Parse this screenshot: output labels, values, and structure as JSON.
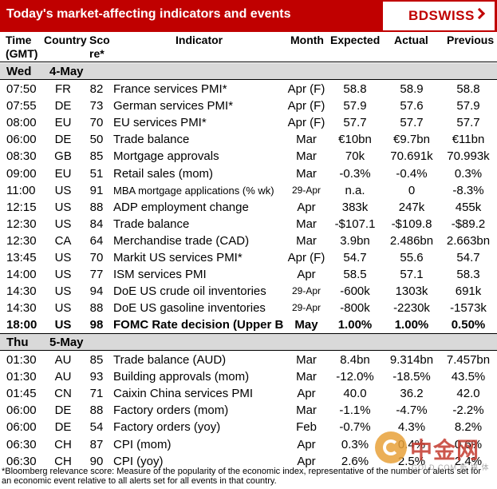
{
  "title": "Today's market-affecting indicators and events",
  "logo": "BDSWISS",
  "headers": {
    "time": [
      "Time",
      "(GMT)"
    ],
    "country": "Country",
    "score": [
      "Sco",
      "re*"
    ],
    "indicator": "Indicator",
    "month": "Month",
    "expected": "Expected",
    "actual": "Actual",
    "previous": "Previous"
  },
  "days": [
    {
      "day": "Wed",
      "date": "4-May",
      "rows": [
        {
          "time": "07:50",
          "country": "FR",
          "score": "82",
          "indicator": "France services PMI*",
          "month": "Apr (F)",
          "expected": "58.8",
          "actual": "58.9",
          "previous": "58.8"
        },
        {
          "time": "07:55",
          "country": "DE",
          "score": "73",
          "indicator": "German services PMI*",
          "month": "Apr (F)",
          "expected": "57.9",
          "actual": "57.6",
          "previous": "57.9"
        },
        {
          "time": "08:00",
          "country": "EU",
          "score": "70",
          "indicator": "EU services PMI*",
          "month": "Apr (F)",
          "expected": "57.7",
          "actual": "57.7",
          "previous": "57.7"
        },
        {
          "time": "06:00",
          "country": "DE",
          "score": "50",
          "indicator": "Trade balance",
          "month": "Mar",
          "expected": "€10bn",
          "actual": "€9.7bn",
          "previous": "€11bn"
        },
        {
          "time": "08:30",
          "country": "GB",
          "score": "85",
          "indicator": "Mortgage approvals",
          "month": "Mar",
          "expected": "70k",
          "actual": "70.691k",
          "previous": "70.993k"
        },
        {
          "time": "09:00",
          "country": "EU",
          "score": "51",
          "indicator": "Retail sales (mom)",
          "month": "Mar",
          "expected": "-0.3%",
          "actual": "-0.4%",
          "previous": "0.3%"
        },
        {
          "time": "11:00",
          "country": "US",
          "score": "91",
          "indicator": "MBA mortgage applications (% wk)",
          "month": "29-Apr",
          "expected": "n.a.",
          "actual": "0",
          "previous": "-8.3%",
          "small_ind": true,
          "small_month": true
        },
        {
          "time": "12:15",
          "country": "US",
          "score": "88",
          "indicator": "ADP employment change",
          "month": "Apr",
          "expected": "383k",
          "actual": "247k",
          "previous": "455k"
        },
        {
          "time": "12:30",
          "country": "US",
          "score": "84",
          "indicator": "Trade balance",
          "month": "Mar",
          "expected": "-$107.1",
          "actual": "-$109.8",
          "previous": "-$89.2"
        },
        {
          "time": "12:30",
          "country": "CA",
          "score": "64",
          "indicator": "Merchandise trade (CAD)",
          "month": "Mar",
          "expected": "3.9bn",
          "actual": "2.486bn",
          "previous": "2.663bn"
        },
        {
          "time": "13:45",
          "country": "US",
          "score": "70",
          "indicator": "Markit US services PMI*",
          "month": "Apr (F)",
          "expected": "54.7",
          "actual": "55.6",
          "previous": "54.7"
        },
        {
          "time": "14:00",
          "country": "US",
          "score": "77",
          "indicator": "ISM services PMI",
          "month": "Apr",
          "expected": "58.5",
          "actual": "57.1",
          "previous": "58.3"
        },
        {
          "time": "14:30",
          "country": "US",
          "score": "94",
          "indicator": "DoE US crude oil inventories",
          "month": "29-Apr",
          "expected": "-600k",
          "actual": "1303k",
          "previous": "691k",
          "small_month": true
        },
        {
          "time": "14:30",
          "country": "US",
          "score": "88",
          "indicator": "DoE US gasoline inventories",
          "month": "29-Apr",
          "expected": "-800k",
          "actual": "-2230k",
          "previous": "-1573k",
          "small_month": true
        },
        {
          "time": "18:00",
          "country": "US",
          "score": "98",
          "indicator": "FOMC Rate decision (Upper B",
          "month": "May",
          "expected": "1.00%",
          "actual": "1.00%",
          "previous": "0.50%",
          "highlight": true
        }
      ]
    },
    {
      "day": "Thu",
      "date": "5-May",
      "rows": [
        {
          "time": "01:30",
          "country": "AU",
          "score": "85",
          "indicator": "Trade balance (AUD)",
          "month": "Mar",
          "expected": "8.4bn",
          "actual": "9.314bn",
          "previous": "7.457bn"
        },
        {
          "time": "01:30",
          "country": "AU",
          "score": "93",
          "indicator": "Building approvals (mom)",
          "month": "Mar",
          "expected": "-12.0%",
          "actual": "-18.5%",
          "previous": "43.5%"
        },
        {
          "time": "01:45",
          "country": "CN",
          "score": "71",
          "indicator": "Caixin China services PMI",
          "month": "Apr",
          "expected": "40.0",
          "actual": "36.2",
          "previous": "42.0"
        },
        {
          "time": "06:00",
          "country": "DE",
          "score": "88",
          "indicator": "Factory orders (mom)",
          "month": "Mar",
          "expected": "-1.1%",
          "actual": "-4.7%",
          "previous": "-2.2%"
        },
        {
          "time": "06:00",
          "country": "DE",
          "score": "54",
          "indicator": "Factory orders (yoy)",
          "month": "Feb",
          "expected": "-0.7%",
          "actual": "4.3%",
          "previous": "8.2%"
        },
        {
          "time": "06:30",
          "country": "CH",
          "score": "87",
          "indicator": "CPI (mom)",
          "month": "Apr",
          "expected": "0.3%",
          "actual": "0.4%",
          "previous": "0.6%"
        },
        {
          "time": "06:30",
          "country": "CH",
          "score": "90",
          "indicator": "CPI (yoy)",
          "month": "Apr",
          "expected": "2.6%",
          "actual": "2.5%",
          "previous": "2.4%"
        }
      ]
    }
  ],
  "footnote": "*Bloomberg relevance score: Measure of the popularity of the economic index, representative of the number of alerts set for an economic event relative to all alerts set for all events in that country.",
  "watermark": {
    "text": "中金网",
    "sub": "GOLD.COM 新 媒 体"
  },
  "colors": {
    "header_red": "#c00000",
    "day_gray": "#d9d9d9"
  }
}
